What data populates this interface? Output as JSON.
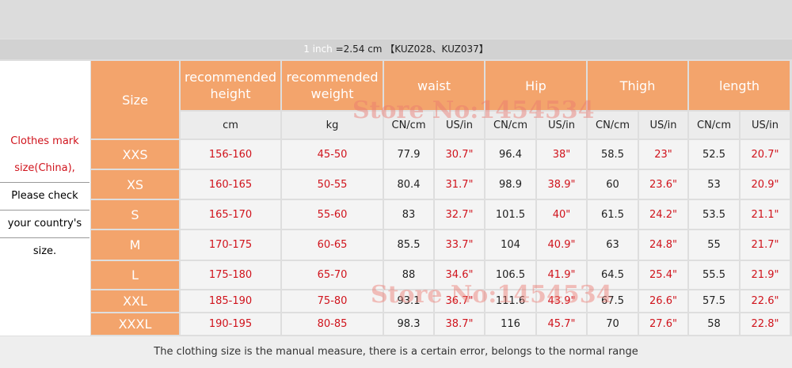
{
  "header": {
    "inch_label": "1 inch",
    "conversion": "=2.54 cm 【KUZ028、KUZ037】"
  },
  "side_note": [
    "Clothes mark",
    "size(China),",
    "Please check",
    "your country's",
    "size."
  ],
  "table": {
    "columns": [
      "Size",
      "recommended height",
      "recommended weight",
      "waist",
      "Hip",
      "Thigh",
      "length"
    ],
    "units": [
      "cm",
      "kg",
      "CN/cm",
      "US/in",
      "CN/cm",
      "US/in",
      "CN/cm",
      "US/in",
      "CN/cm",
      "US/in"
    ],
    "rows": [
      [
        "XXS",
        "156-160",
        "45-50",
        "77.9",
        "30.7\"",
        "96.4",
        "38\"",
        "58.5",
        "23\"",
        "52.5",
        "20.7\""
      ],
      [
        "XS",
        "160-165",
        "50-55",
        "80.4",
        "31.7\"",
        "98.9",
        "38.9\"",
        "60",
        "23.6\"",
        "53",
        "20.9\""
      ],
      [
        "S",
        "165-170",
        "55-60",
        "83",
        "32.7\"",
        "101.5",
        "40\"",
        "61.5",
        "24.2\"",
        "53.5",
        "21.1\""
      ],
      [
        "M",
        "170-175",
        "60-65",
        "85.5",
        "33.7\"",
        "104",
        "40.9\"",
        "63",
        "24.8\"",
        "55",
        "21.7\""
      ],
      [
        "L",
        "175-180",
        "65-70",
        "88",
        "34.6\"",
        "106.5",
        "41.9\"",
        "64.5",
        "25.4\"",
        "55.5",
        "21.9\""
      ],
      [
        "XXL",
        "185-190",
        "75-80",
        "93.1",
        "36.7\"",
        "111.6",
        "43.9\"",
        "67.5",
        "26.6\"",
        "57.5",
        "22.6\""
      ],
      [
        "XXXL",
        "190-195",
        "80-85",
        "98.3",
        "38.7\"",
        "116",
        "45.7\"",
        "70",
        "27.6\"",
        "58",
        "22.8\""
      ]
    ]
  },
  "footer": "The clothing size is the manual measure, there is a certain error, belongs to the normal range",
  "watermark": "Store No:1454534"
}
